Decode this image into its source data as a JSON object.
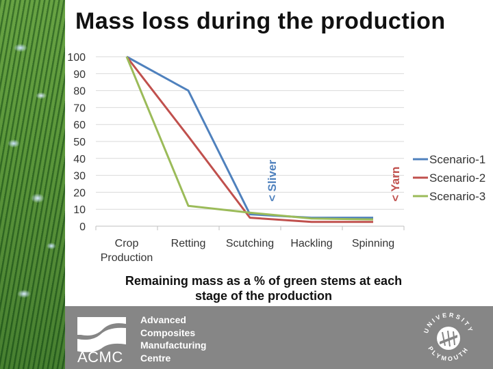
{
  "slide": {
    "title": "Mass loss during the production",
    "caption_line1": "Remaining mass as a % of green stems at each",
    "caption_line2": "stage of the production"
  },
  "footer": {
    "logo_text": "ACMC",
    "centre_lines": [
      "Advanced",
      "Composites",
      "Manufacturing",
      "Centre"
    ],
    "university_seal_top": "UNIVERSITY",
    "university_seal_bottom": "PLYMOUTH"
  },
  "chart_data": {
    "type": "line",
    "categories": [
      "Crop Production",
      "Retting",
      "Scutching",
      "Hackling",
      "Spinning"
    ],
    "category_labels": [
      [
        "Crop",
        "Production"
      ],
      [
        "Retting"
      ],
      [
        "Scutching"
      ],
      [
        "Hackling"
      ],
      [
        "Spinning"
      ]
    ],
    "ylim": [
      0,
      100
    ],
    "yticks": [
      0,
      10,
      20,
      30,
      40,
      50,
      60,
      70,
      80,
      90,
      100
    ],
    "grid": true,
    "legend_position": "right",
    "series": [
      {
        "name": "Scenario-1",
        "color": "#4f81bd",
        "values": [
          100,
          80,
          7,
          5,
          5
        ]
      },
      {
        "name": "Scenario-2",
        "color": "#c0504d",
        "values": [
          100,
          53,
          5,
          2.5,
          2.5
        ]
      },
      {
        "name": "Scenario-3",
        "color": "#9bbb59",
        "values": [
          100,
          12,
          8,
          4.5,
          4
        ]
      }
    ],
    "annotations": [
      {
        "text": "< Sliver",
        "color": "#4f81bd",
        "after_category": "Scutching"
      },
      {
        "text": "< Yarn",
        "color": "#c0504d",
        "after_category": "Spinning"
      }
    ]
  }
}
